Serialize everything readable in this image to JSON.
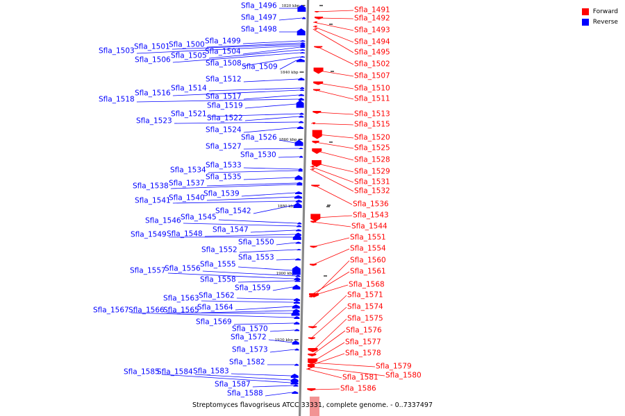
{
  "legend": [
    {
      "label": "Forward",
      "color": "#ff0000"
    },
    {
      "label": "Reverse",
      "color": "#0000ff"
    }
  ],
  "caption": "Streptomyces flavogriseus ATCC 33331, complete genome. - 0..7337497",
  "ticks": [
    {
      "label": "1820 kbp"
    },
    {
      "label": "1840 kbp"
    },
    {
      "label": "1860 kbp"
    },
    {
      "label": "1880 kbp"
    },
    {
      "label": "1900 kbp"
    },
    {
      "label": "1920 kbp"
    }
  ],
  "reverse_genes": [
    {
      "id": "Sfla_1496"
    },
    {
      "id": "Sfla_1497"
    },
    {
      "id": "Sfla_1498"
    },
    {
      "id": "Sfla_1499"
    },
    {
      "id": "Sfla_1500"
    },
    {
      "id": "Sfla_1501"
    },
    {
      "id": "Sfla_1503"
    },
    {
      "id": "Sfla_1504"
    },
    {
      "id": "Sfla_1505"
    },
    {
      "id": "Sfla_1506"
    },
    {
      "id": "Sfla_1508"
    },
    {
      "id": "Sfla_1509"
    },
    {
      "id": "Sfla_1512"
    },
    {
      "id": "Sfla_1514"
    },
    {
      "id": "Sfla_1516"
    },
    {
      "id": "Sfla_1517"
    },
    {
      "id": "Sfla_1518"
    },
    {
      "id": "Sfla_1519"
    },
    {
      "id": "Sfla_1521"
    },
    {
      "id": "Sfla_1522"
    },
    {
      "id": "Sfla_1523"
    },
    {
      "id": "Sfla_1524"
    },
    {
      "id": "Sfla_1526"
    },
    {
      "id": "Sfla_1527"
    },
    {
      "id": "Sfla_1530"
    },
    {
      "id": "Sfla_1533"
    },
    {
      "id": "Sfla_1534"
    },
    {
      "id": "Sfla_1535"
    },
    {
      "id": "Sfla_1537"
    },
    {
      "id": "Sfla_1538"
    },
    {
      "id": "Sfla_1539"
    },
    {
      "id": "Sfla_1540"
    },
    {
      "id": "Sfla_1541"
    },
    {
      "id": "Sfla_1542"
    },
    {
      "id": "Sfla_1545"
    },
    {
      "id": "Sfla_1546"
    },
    {
      "id": "Sfla_1547"
    },
    {
      "id": "Sfla_1548"
    },
    {
      "id": "Sfla_1549"
    },
    {
      "id": "Sfla_1550"
    },
    {
      "id": "Sfla_1552"
    },
    {
      "id": "Sfla_1553"
    },
    {
      "id": "Sfla_1555"
    },
    {
      "id": "Sfla_1556"
    },
    {
      "id": "Sfla_1557"
    },
    {
      "id": "Sfla_1558"
    },
    {
      "id": "Sfla_1559"
    },
    {
      "id": "Sfla_1562"
    },
    {
      "id": "Sfla_1563"
    },
    {
      "id": "Sfla_1564"
    },
    {
      "id": "Sfla_1565"
    },
    {
      "id": "Sfla_1566"
    },
    {
      "id": "Sfla_1567"
    },
    {
      "id": "Sfla_1569"
    },
    {
      "id": "Sfla_1570"
    },
    {
      "id": "Sfla_1572"
    },
    {
      "id": "Sfla_1573"
    },
    {
      "id": "Sfla_1582"
    },
    {
      "id": "Sfla_1583"
    },
    {
      "id": "Sfla_1584"
    },
    {
      "id": "Sfla_1585"
    },
    {
      "id": "Sfla_1587"
    },
    {
      "id": "Sfla_1588"
    }
  ],
  "forward_genes": [
    {
      "id": "Sfla_1491"
    },
    {
      "id": "Sfla_1492"
    },
    {
      "id": "Sfla_1493"
    },
    {
      "id": "Sfla_1494"
    },
    {
      "id": "Sfla_1495"
    },
    {
      "id": "Sfla_1502"
    },
    {
      "id": "Sfla_1507"
    },
    {
      "id": "Sfla_1510"
    },
    {
      "id": "Sfla_1511"
    },
    {
      "id": "Sfla_1513"
    },
    {
      "id": "Sfla_1515"
    },
    {
      "id": "Sfla_1520"
    },
    {
      "id": "Sfla_1525"
    },
    {
      "id": "Sfla_1528"
    },
    {
      "id": "Sfla_1529"
    },
    {
      "id": "Sfla_1531"
    },
    {
      "id": "Sfla_1532"
    },
    {
      "id": "Sfla_1536"
    },
    {
      "id": "Sfla_1543"
    },
    {
      "id": "Sfla_1544"
    },
    {
      "id": "Sfla_1551"
    },
    {
      "id": "Sfla_1554"
    },
    {
      "id": "Sfla_1560"
    },
    {
      "id": "Sfla_1561"
    },
    {
      "id": "Sfla_1568"
    },
    {
      "id": "Sfla_1571"
    },
    {
      "id": "Sfla_1574"
    },
    {
      "id": "Sfla_1575"
    },
    {
      "id": "Sfla_1576"
    },
    {
      "id": "Sfla_1577"
    },
    {
      "id": "Sfla_1578"
    },
    {
      "id": "Sfla_1579"
    },
    {
      "id": "Sfla_1580"
    },
    {
      "id": "Sfla_1581"
    },
    {
      "id": "Sfla_1586"
    }
  ]
}
